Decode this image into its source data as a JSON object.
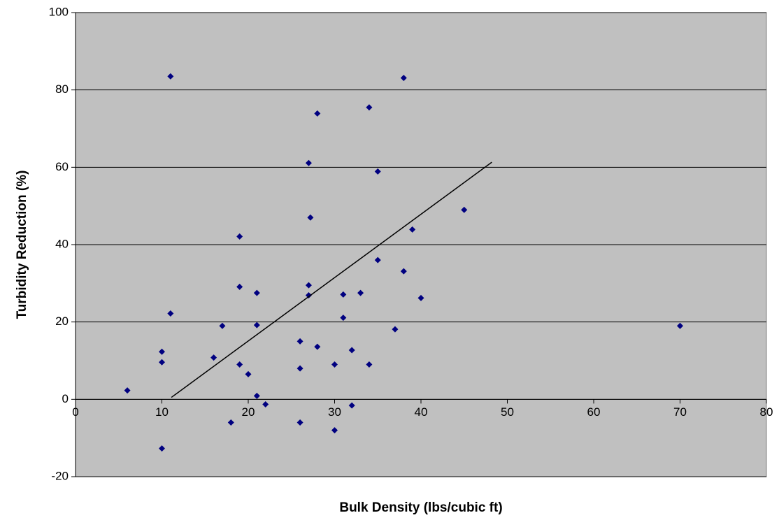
{
  "chart_data": {
    "type": "scatter",
    "xlabel": "Bulk Density (lbs/cubic ft)",
    "ylabel": "Turbidity Reduction (%)",
    "x": [
      6,
      10,
      10,
      10,
      11,
      11,
      16,
      17,
      18,
      19,
      19,
      19,
      20,
      21,
      21,
      21,
      22,
      26,
      26,
      26,
      27,
      27,
      27,
      27.2,
      28,
      28,
      30,
      30,
      31,
      31,
      32,
      32,
      33,
      34,
      34,
      35,
      35,
      37,
      38,
      38,
      39,
      40,
      45,
      70
    ],
    "y": [
      2.3,
      12.3,
      9.6,
      -12.7,
      83.5,
      22.2,
      10.8,
      19,
      -6,
      42.1,
      29.1,
      9,
      6.5,
      27.5,
      19.2,
      0.9,
      -1.3,
      15,
      8,
      -6,
      61.1,
      29.5,
      26.9,
      47,
      73.9,
      13.6,
      9,
      -8,
      27.1,
      21.1,
      12.7,
      -1.6,
      27.5,
      75.5,
      9,
      58.9,
      36,
      18.1,
      83.1,
      33.1,
      43.9,
      26.2,
      49,
      19
    ],
    "color": "#000080",
    "trendline": {
      "x": [
        11.1,
        48.2
      ],
      "y": [
        0.5,
        61.3
      ],
      "color": "#000000"
    },
    "xlim": [
      0,
      80
    ],
    "xticks": [
      0,
      10,
      20,
      30,
      40,
      50,
      60,
      70,
      80
    ],
    "ylim": [
      -20,
      100
    ],
    "yticks": [
      -20,
      0,
      20,
      40,
      60,
      80,
      100
    ],
    "grid": true
  }
}
